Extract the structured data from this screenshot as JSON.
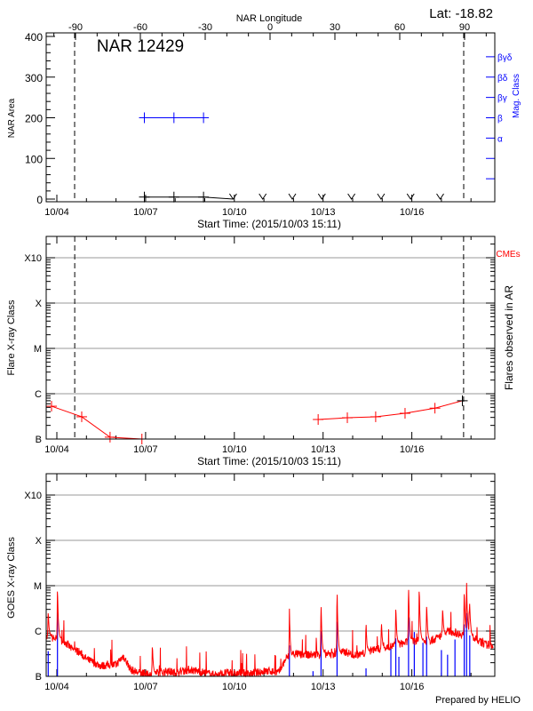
{
  "colors": {
    "axis": "#000000",
    "mag_class": "#0000ff",
    "flares": "#ff0000",
    "goes_flux": "#ff0000",
    "goes_events": "#0000ff",
    "grid": "#999999",
    "cme": "#ff0000"
  },
  "footer": "Prepared by HELIO",
  "chart_data": [
    {
      "type": "line",
      "title": "NAR 12429",
      "annotation": "Lat: -18.82",
      "xlabel": "Start Time: (2015/10/03 15:11)",
      "x2label": "NAR Longitude",
      "ylabel": "NAR Area",
      "y2label": "Mag. Class",
      "ylim": [
        0,
        400
      ],
      "x_ticks": [
        "10/04",
        "10/07",
        "10/10",
        "10/13",
        "10/16"
      ],
      "x2_ticks": [
        "-90",
        "-60",
        "-30",
        "0",
        "30",
        "60",
        "90"
      ],
      "y_ticks": [
        "0",
        "100",
        "200",
        "300",
        "400"
      ],
      "mag_class_ticks": [
        {
          "label": "βγδ",
          "value": 350
        },
        {
          "label": "βδ",
          "value": 300
        },
        {
          "label": "βγ",
          "value": 250
        },
        {
          "label": "β",
          "value": 200
        },
        {
          "label": "α",
          "value": 150
        }
      ],
      "limb_longitudes": [
        -90,
        90
      ],
      "area": [
        {
          "t": "10/06 23:00",
          "v": 5
        },
        {
          "t": "10/07 23:00",
          "v": 5
        },
        {
          "t": "10/08 23:00",
          "v": 5
        },
        {
          "t": "10/09 23:00",
          "v": 0
        }
      ],
      "zero_area_markers": [
        "10/09 23:00",
        "10/10 23:00",
        "10/11 23:00",
        "10/12 23:00",
        "10/13 23:00",
        "10/14 23:00",
        "10/15 23:00",
        "10/16 23:00"
      ],
      "mag_class": [
        {
          "t": "10/06 23:00",
          "class": "β"
        },
        {
          "t": "10/07 23:00",
          "class": "β"
        },
        {
          "t": "10/08 23:00",
          "class": "β"
        }
      ]
    },
    {
      "type": "line",
      "xlabel": "Start Time: (2015/10/03 15:11)",
      "ylabel": "Flare X-ray Class",
      "y2label": "Flares observed in AR",
      "legend": "CMEs",
      "y_scale": "log",
      "y_ticks": [
        "B",
        "C",
        "M",
        "X",
        "X10"
      ],
      "x_ticks": [
        "10/04",
        "10/07",
        "10/10",
        "10/13",
        "10/16"
      ],
      "grid": true,
      "limb_crossing_times": [
        "10/04 14:30",
        "10/17 18:00"
      ],
      "segments": [
        [
          {
            "t": "10/03 19:40",
            "c": "B5.3"
          },
          {
            "t": "10/04 20:10",
            "c": "B3.1"
          },
          {
            "t": "10/05 19:10",
            "c": "B1.1"
          },
          {
            "t": "10/06 21:00",
            "c": "B1.0"
          }
        ],
        [
          {
            "t": "10/12 20:00",
            "c": "B2.7"
          },
          {
            "t": "10/13 19:40",
            "c": "B2.95"
          },
          {
            "t": "10/14 18:40",
            "c": "B3.1"
          },
          {
            "t": "10/15 18:30",
            "c": "B3.7"
          },
          {
            "t": "10/16 18:45",
            "c": "B4.8"
          },
          {
            "t": "10/17 17:00",
            "c": "B7.0"
          }
        ]
      ]
    },
    {
      "type": "line",
      "ylabel": "GOES X-ray Class",
      "y_scale": "log",
      "y_ticks": [
        "B",
        "C",
        "M",
        "X",
        "X10"
      ],
      "x_ticks": [
        "10/04",
        "10/07",
        "10/10",
        "10/13",
        "10/16"
      ],
      "grid": true,
      "flux_baseline": [
        [
          "10/03 15:11",
          "B7.0"
        ],
        [
          "10/03 18:00",
          "B7.4"
        ],
        [
          "10/04 00:00",
          "B6.5"
        ],
        [
          "10/04 06:00",
          "B6.0"
        ],
        [
          "10/04 12:00",
          "B4.0"
        ],
        [
          "10/04 18:00",
          "B3.5"
        ],
        [
          "10/05 00:00",
          "B2.4"
        ],
        [
          "10/05 06:00",
          "B2.0"
        ],
        [
          "10/05 12:00",
          "B1.7"
        ],
        [
          "10/05 18:00",
          "B1.8"
        ],
        [
          "10/06 00:00",
          "B1.8"
        ],
        [
          "10/06 06:00",
          "B2.8"
        ],
        [
          "10/06 12:00",
          "B1.4"
        ],
        [
          "10/06 18:00",
          "B1.2"
        ],
        [
          "10/07 00:00",
          "B1.1"
        ],
        [
          "10/07 06:00",
          "B1.1"
        ],
        [
          "10/07 12:00",
          "B1.2"
        ],
        [
          "10/07 18:00",
          "B1.3"
        ],
        [
          "10/08 00:00",
          "B1.2"
        ],
        [
          "10/08 06:00",
          "B1.3"
        ],
        [
          "10/08 12:00",
          "B1.4"
        ],
        [
          "10/08 18:00",
          "B1.3"
        ],
        [
          "10/09 00:00",
          "B1.2"
        ],
        [
          "10/09 06:00",
          "B1.1"
        ],
        [
          "10/09 12:00",
          "B1.1"
        ],
        [
          "10/09 18:00",
          "B1.2"
        ],
        [
          "10/10 00:00",
          "B1.1"
        ],
        [
          "10/10 06:00",
          "B1.2"
        ],
        [
          "10/10 12:00",
          "B1.1"
        ],
        [
          "10/10 18:00",
          "B1.2"
        ],
        [
          "10/11 00:00",
          "B1.3"
        ],
        [
          "10/11 06:00",
          "B1.3"
        ],
        [
          "10/11 12:00",
          "B1.2"
        ],
        [
          "10/11 18:00",
          "B2.5"
        ],
        [
          "10/12 00:00",
          "B3.2"
        ],
        [
          "10/12 06:00",
          "B3.0"
        ],
        [
          "10/12 12:00",
          "B3.0"
        ],
        [
          "10/12 18:00",
          "B3.0"
        ],
        [
          "10/13 00:00",
          "B3.2"
        ],
        [
          "10/13 06:00",
          "B3.0"
        ],
        [
          "10/13 12:00",
          "B3.2"
        ],
        [
          "10/13 18:00",
          "B3.5"
        ],
        [
          "10/14 00:00",
          "B3.0"
        ],
        [
          "10/14 06:00",
          "B3.0"
        ],
        [
          "10/14 12:00",
          "B3.5"
        ],
        [
          "10/14 18:00",
          "B4.0"
        ],
        [
          "10/15 00:00",
          "B4.0"
        ],
        [
          "10/15 06:00",
          "B4.5"
        ],
        [
          "10/15 12:00",
          "B5.0"
        ],
        [
          "10/15 18:00",
          "B5.5"
        ],
        [
          "10/16 00:00",
          "B6.0"
        ],
        [
          "10/16 06:00",
          "B6.0"
        ],
        [
          "10/16 12:00",
          "B6.0"
        ],
        [
          "10/16 18:00",
          "B6.5"
        ],
        [
          "10/17 00:00",
          "B8.0"
        ],
        [
          "10/17 06:00",
          "C1.0"
        ],
        [
          "10/17 12:00",
          "B9.0"
        ],
        [
          "10/17 18:00",
          "B8.5"
        ],
        [
          "10/18 00:00",
          "B7.5"
        ],
        [
          "10/18 06:00",
          "B6.0"
        ],
        [
          "10/18 12:00",
          "B5.0"
        ],
        [
          "10/18 18:00",
          "B4.8"
        ]
      ],
      "flux_peaks": [
        [
          "10/03 17:00",
          "C3.0"
        ],
        [
          "10/04 00:30",
          "M1.1"
        ],
        [
          "10/07 05:30",
          "B5.4"
        ],
        [
          "10/11 20:40",
          "C3.3"
        ],
        [
          "10/12 22:20",
          "C4.8"
        ],
        [
          "10/13 11:20",
          "M1.0"
        ],
        [
          "10/14 10:50",
          "C1.7"
        ],
        [
          "10/14 23:20",
          "C1.7"
        ],
        [
          "10/15 11:00",
          "C4.0"
        ],
        [
          "10/15 21:20",
          "M1.2"
        ],
        [
          "10/16 06:00",
          "M1.1"
        ],
        [
          "10/16 12:00",
          "C4.5"
        ],
        [
          "10/17 01:00",
          "C3.5"
        ],
        [
          "10/17 18:30",
          "C9.0"
        ],
        [
          "10/17 20:24",
          "M1.3"
        ],
        [
          "10/17 22:50",
          "C5.0"
        ]
      ],
      "flare_events": [
        [
          "10/03 17:00",
          "B3.6"
        ],
        [
          "10/04 00:30",
          "C2.6"
        ],
        [
          "10/11 20:40",
          "B4.8"
        ],
        [
          "10/12 15:50",
          "B1.3"
        ],
        [
          "10/12 22:20",
          "C1.0"
        ],
        [
          "10/13 11:20",
          "C1.6"
        ],
        [
          "10/14 10:50",
          "B1.5"
        ],
        [
          "10/15 07:00",
          "B4.1"
        ],
        [
          "10/15 11:00",
          "B6.9"
        ],
        [
          "10/15 13:30",
          "B2.7"
        ],
        [
          "10/15 21:20",
          "C2.0"
        ],
        [
          "10/16 02:00",
          "B9.5"
        ],
        [
          "10/16 09:00",
          "B5.5"
        ],
        [
          "10/16 12:00",
          "B7.5"
        ],
        [
          "10/17 00:00",
          "B3.8"
        ],
        [
          "10/17 05:00",
          "B3.0"
        ],
        [
          "10/17 11:00",
          "B6.5"
        ],
        [
          "10/17 18:30",
          "C1.4"
        ],
        [
          "10/17 20:24",
          "C2.5"
        ],
        [
          "10/17 23:00",
          "B8.0"
        ]
      ]
    }
  ]
}
